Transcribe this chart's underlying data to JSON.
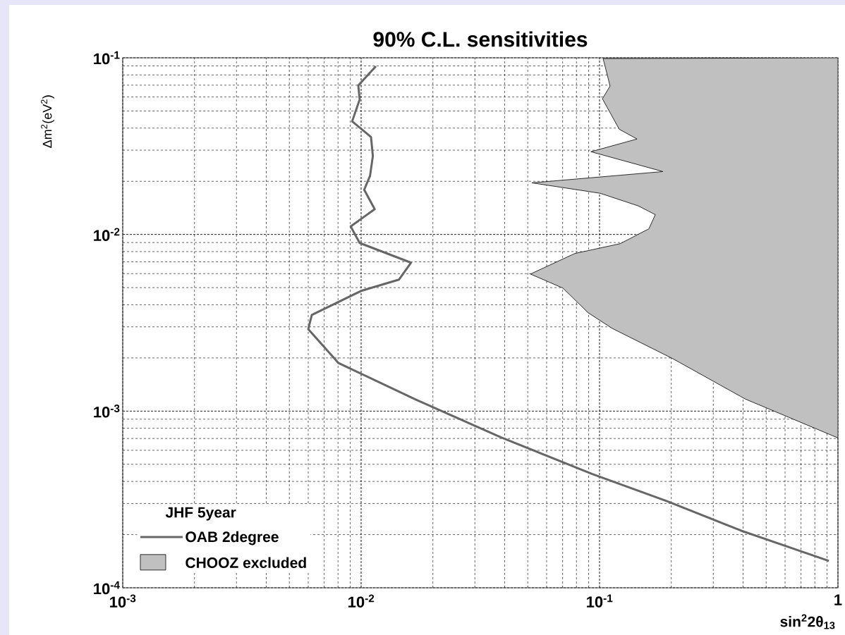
{
  "chart_data": {
    "type": "line",
    "title": "90% C.L. sensitivities",
    "xlabel": "sin$^{2}$2θ$_{13}$",
    "ylabel": "Δm$^{2}$(eV$^{2}$)",
    "legend_title": "JHF 5year",
    "log": "xy",
    "grid": true,
    "legend": "bottom left",
    "xlim": [
      0.001,
      1
    ],
    "ylim": [
      0.0001,
      0.1
    ],
    "xticks": [
      {
        "value": 0.001,
        "label": "10$^{-3}$"
      },
      {
        "value": 0.01,
        "label": "10$^{-2}$"
      },
      {
        "value": 0.1,
        "label": "10$^{-1}$"
      },
      {
        "value": 1,
        "label": "1"
      }
    ],
    "yticks": [
      {
        "value": 0.0001,
        "label": "10$^{-4}$"
      },
      {
        "value": 0.001,
        "label": "10$^{-3}$"
      },
      {
        "value": 0.01,
        "label": "10$^{-2}$"
      },
      {
        "value": 0.1,
        "label": "10$^{-1}$"
      }
    ],
    "series": [
      {
        "name": "OAB 2degree",
        "color": "#666666",
        "x": [
          0.01153,
          0.00973,
          0.00986,
          0.00917,
          0.011,
          0.0112,
          0.0109,
          0.0103,
          0.0114,
          0.00904,
          0.00986,
          0.0162,
          0.0144,
          0.01,
          0.00621,
          0.006,
          0.00804,
          0.017,
          0.0385,
          0.0933,
          0.191,
          0.391,
          0.916
        ],
        "values": [
          0.0895,
          0.0698,
          0.0581,
          0.0437,
          0.0356,
          0.0278,
          0.0215,
          0.0179,
          0.0139,
          0.0111,
          0.00895,
          0.00692,
          0.00555,
          0.00479,
          0.0035,
          0.00291,
          0.00187,
          0.00116,
          0.000711,
          0.00044,
          0.00031,
          0.000211,
          0.000142
        ]
      },
      {
        "name": "CHOOZ excluded",
        "type": "area",
        "color": "#c0c0c0",
        "x": [
          1.0,
          0.1035,
          0.1107,
          0.1028,
          0.121,
          0.1436,
          0.092,
          0.1845,
          0.052,
          0.1007,
          0.1456,
          0.1714,
          0.161,
          0.122,
          0.0787,
          0.0513,
          0.0702,
          0.0897,
          0.113,
          0.203,
          0.409,
          1.0
        ],
        "values": [
          0.1,
          0.099,
          0.0692,
          0.0586,
          0.0394,
          0.0347,
          0.0294,
          0.0227,
          0.0196,
          0.0171,
          0.0145,
          0.01294,
          0.01076,
          0.00887,
          0.0078,
          0.00597,
          0.00497,
          0.0036,
          0.00294,
          0.00198,
          0.00117,
          0.000705
        ]
      }
    ]
  }
}
